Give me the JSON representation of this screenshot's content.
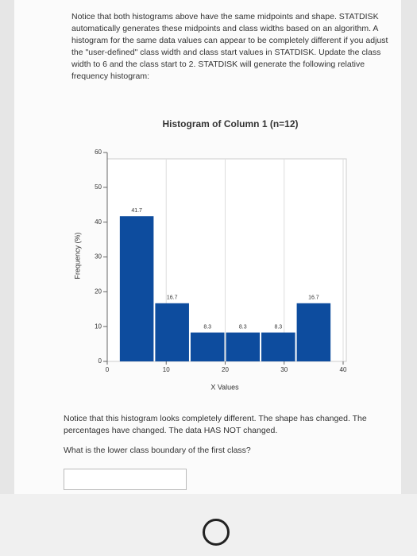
{
  "text": {
    "intro": "Notice that both histograms above have the same midpoints and shape. STATDISK automatically generates these midpoints and class widths based on an algorithm. A histogram for the same data values can appear to be completely different if you adjust the \"user-defined\" class width and class start values in STATDISK. Update the class width to 6 and the class start to 2. STATDISK will generate the following relative frequency histogram:",
    "after": "Notice that this histogram looks completely different. The shape has changed. The percentages have changed. The data HAS NOT changed.",
    "question": "What is the lower class boundary of the first class?"
  },
  "chart_data": {
    "type": "histogram",
    "title": "Histogram of Column 1 (n=12)",
    "xlabel": "X Values",
    "ylabel": "Frequency (%)",
    "bins": [
      2,
      8,
      14,
      20,
      26,
      32,
      38
    ],
    "values": [
      41.7,
      16.7,
      8.3,
      8.3,
      8.3,
      16.7
    ],
    "color": "#0d4c9e",
    "xlim": [
      0,
      40
    ],
    "xticks": [
      0,
      10,
      20,
      30,
      40
    ],
    "ylim": [
      0,
      60
    ],
    "yticks": [
      0,
      10,
      20,
      30,
      40,
      50,
      60
    ],
    "grid": true
  }
}
